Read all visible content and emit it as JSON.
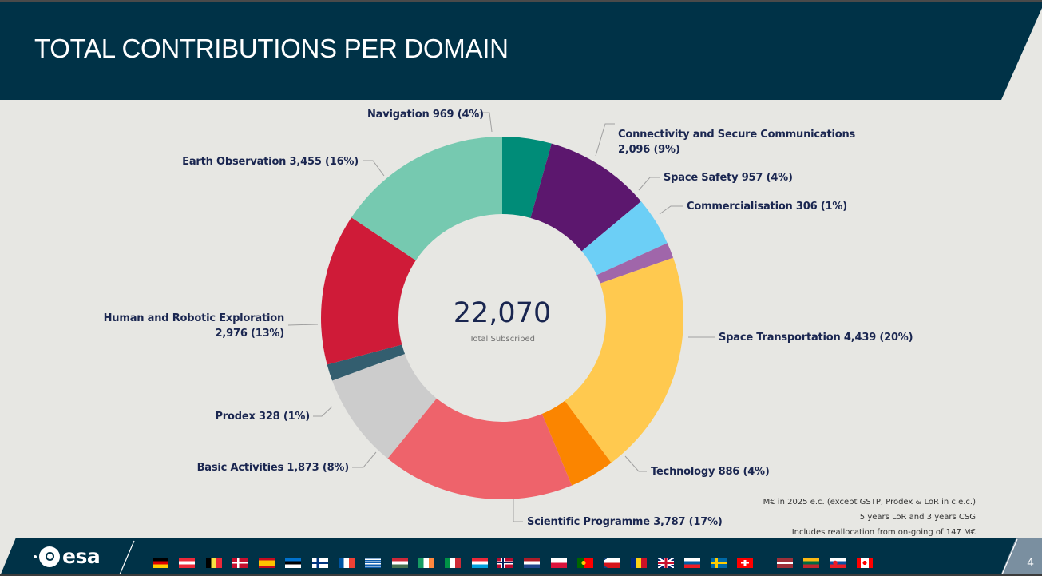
{
  "header": {
    "title": "TOTAL CONTRIBUTIONS PER DOMAIN",
    "background_color": "#003247"
  },
  "chart_data": {
    "type": "pie",
    "subtype": "donut",
    "title": "TOTAL CONTRIBUTIONS PER DOMAIN",
    "unit": "M€",
    "center_value": "22,070",
    "center_label": "Total Subscribed",
    "total": 22070,
    "start_angle_deg": 0,
    "direction": "clockwise",
    "slices": [
      {
        "name": "Navigation",
        "value": 969,
        "percent": 4,
        "color": "#008c78",
        "label": "Navigation 969 (4%)"
      },
      {
        "name": "Connectivity and Secure Communications",
        "value": 2096,
        "percent": 9,
        "color": "#5c176e",
        "label_line1": "Connectivity and Secure Communications",
        "label_line2": "2,096 (9%)"
      },
      {
        "name": "Space Safety",
        "value": 957,
        "percent": 4,
        "color": "#6ccff6",
        "label": "Space Safety 957 (4%)"
      },
      {
        "name": "Commercialisation",
        "value": 306,
        "percent": 1,
        "color": "#a066aa",
        "label": "Commercialisation 306 (1%)"
      },
      {
        "name": "Space Transportation",
        "value": 4439,
        "percent": 20,
        "color": "#ffc94f",
        "label": "Space Transportation 4,439 (20%)"
      },
      {
        "name": "Technology",
        "value": 886,
        "percent": 4,
        "color": "#fb8500",
        "label": "Technology 886 (4%)"
      },
      {
        "name": "Scientific Programme",
        "value": 3787,
        "percent": 17,
        "color": "#ee636b",
        "label": "Scientific Programme 3,787 (17%)"
      },
      {
        "name": "Basic Activities",
        "value": 1873,
        "percent": 8,
        "color": "#cccccc",
        "label": "Basic Activities 1,873 (8%)"
      },
      {
        "name": "Prodex",
        "value": 328,
        "percent": 1,
        "color": "#335e6f",
        "label": "Prodex 328 (1%)"
      },
      {
        "name": "Human and Robotic Exploration",
        "value": 2976,
        "percent": 13,
        "color": "#cf1b38",
        "label_line1": "Human and Robotic Exploration",
        "label_line2": "2,976 (13%)"
      },
      {
        "name": "Earth Observation",
        "value": 3455,
        "percent": 16,
        "color": "#76c9b0",
        "label": "Earth Observation 3,455 (16%)"
      }
    ],
    "legend": "none (data labels with leader lines)"
  },
  "notes": {
    "line1": "M€ in 2025 e.c. (except GSTP, Prodex & LoR in c.e.c.)",
    "line2": "5 years LoR and 3 years CSG",
    "line3": "Includes reallocation from on-going of 147 M€"
  },
  "footer": {
    "logo_text": "esa",
    "page_number": "4",
    "flags": [
      "Germany",
      "Austria",
      "Belgium",
      "Denmark",
      "Spain",
      "Estonia",
      "Finland",
      "France",
      "Greece",
      "Hungary",
      "Ireland",
      "Italy",
      "Luxembourg",
      "Norway",
      "Netherlands",
      "Poland",
      "Portugal",
      "Czech Republic",
      "Romania",
      "United Kingdom",
      "Slovenia",
      "Sweden",
      "Switzerland",
      "Latvia",
      "Lithuania",
      "Slovakia",
      "Canada"
    ]
  }
}
